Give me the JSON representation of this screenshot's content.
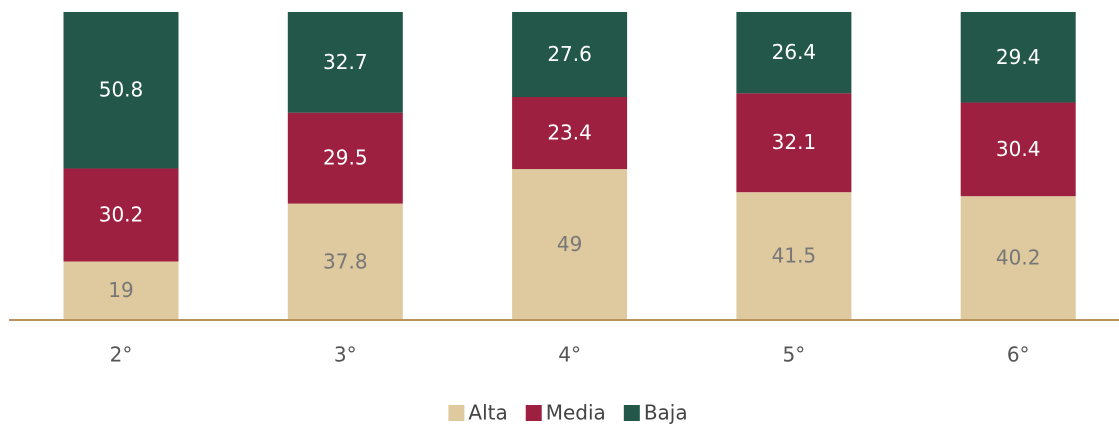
{
  "chart_data": {
    "type": "stacked_bar",
    "categories": [
      "2°",
      "3°",
      "4°",
      "5°",
      "6°"
    ],
    "series": [
      {
        "name": "Alta",
        "color": "#dfc99e",
        "values": [
          19,
          37.8,
          49,
          41.5,
          40.2
        ]
      },
      {
        "name": "Media",
        "color": "#9e2040",
        "values": [
          30.2,
          29.5,
          23.4,
          32.1,
          30.4
        ]
      },
      {
        "name": "Baja",
        "color": "#22574a",
        "values": [
          50.8,
          32.7,
          27.6,
          26.4,
          29.4
        ]
      }
    ]
  }
}
